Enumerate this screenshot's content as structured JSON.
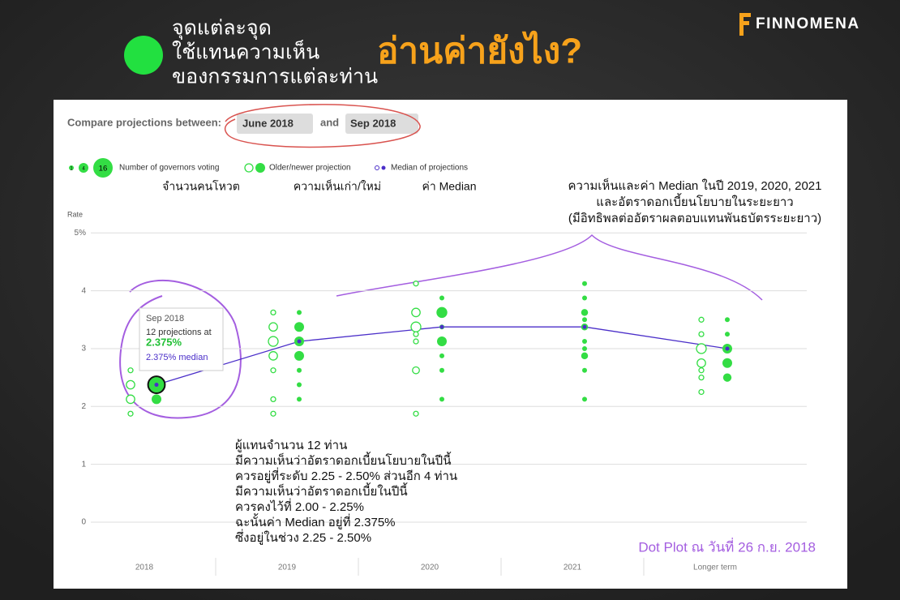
{
  "header": {
    "lines": [
      "จุดแต่ละจุด",
      "ใช้แทนความเห็น",
      "ของกรรมการแต่ละท่าน"
    ],
    "title": "อ่านค่ายังไง?",
    "logo": "FINNOMENA"
  },
  "controls": {
    "label": "Compare projections between:",
    "from": "June 2018",
    "and": "and",
    "to": "Sep 2018"
  },
  "chart_data": {
    "type": "dotplot",
    "legend": {
      "size_label": "Number of governors voting",
      "sizes": [
        1,
        4,
        16
      ],
      "projection_label": "Older/newer projection",
      "median_label": "Median of projections"
    },
    "y_label": "Rate",
    "categories": [
      "2018",
      "2019",
      "2020",
      "2021",
      "Longer term"
    ],
    "ylim": [
      0,
      5.2
    ],
    "yticks": [
      0,
      1,
      2,
      3,
      4,
      {
        "value": 5,
        "label": "5%"
      }
    ],
    "grid": true,
    "series": [
      {
        "fill": false,
        "color": "#33dd44",
        "points": [
          {
            "x": 0,
            "y": 2.625,
            "n": 1
          },
          {
            "x": 0,
            "y": 2.375,
            "n": 3
          },
          {
            "x": 0,
            "y": 2.125,
            "n": 3
          },
          {
            "x": 0,
            "y": 1.875,
            "n": 1
          },
          {
            "x": 1,
            "y": 3.625,
            "n": 1
          },
          {
            "x": 1,
            "y": 3.375,
            "n": 3
          },
          {
            "x": 1,
            "y": 3.125,
            "n": 4
          },
          {
            "x": 1,
            "y": 2.875,
            "n": 3
          },
          {
            "x": 1,
            "y": 2.625,
            "n": 1
          },
          {
            "x": 1,
            "y": 2.125,
            "n": 1
          },
          {
            "x": 1,
            "y": 1.875,
            "n": 1
          },
          {
            "x": 2,
            "y": 4.125,
            "n": 1
          },
          {
            "x": 2,
            "y": 3.625,
            "n": 3
          },
          {
            "x": 2,
            "y": 3.375,
            "n": 4
          },
          {
            "x": 2,
            "y": 3.25,
            "n": 1
          },
          {
            "x": 2,
            "y": 3.125,
            "n": 1
          },
          {
            "x": 2,
            "y": 2.625,
            "n": 2
          },
          {
            "x": 2,
            "y": 1.875,
            "n": 1
          },
          {
            "x": 4,
            "y": 3.5,
            "n": 1
          },
          {
            "x": 4,
            "y": 3.25,
            "n": 1
          },
          {
            "x": 4,
            "y": 3.0,
            "n": 4
          },
          {
            "x": 4,
            "y": 2.75,
            "n": 3
          },
          {
            "x": 4,
            "y": 2.625,
            "n": 1
          },
          {
            "x": 4,
            "y": 2.5,
            "n": 1
          },
          {
            "x": 4,
            "y": 2.25,
            "n": 1
          }
        ]
      },
      {
        "fill": true,
        "color": "#33dd44",
        "points": [
          {
            "x": 0,
            "y": 2.375,
            "n": 12
          },
          {
            "x": 0,
            "y": 2.125,
            "n": 4
          },
          {
            "x": 1,
            "y": 3.625,
            "n": 1
          },
          {
            "x": 1,
            "y": 3.375,
            "n": 4
          },
          {
            "x": 1,
            "y": 3.125,
            "n": 4
          },
          {
            "x": 1,
            "y": 2.875,
            "n": 4
          },
          {
            "x": 1,
            "y": 2.625,
            "n": 1
          },
          {
            "x": 1,
            "y": 2.375,
            "n": 1
          },
          {
            "x": 1,
            "y": 2.125,
            "n": 1
          },
          {
            "x": 2,
            "y": 3.875,
            "n": 1
          },
          {
            "x": 2,
            "y": 3.625,
            "n": 5
          },
          {
            "x": 2,
            "y": 3.375,
            "n": 1
          },
          {
            "x": 2,
            "y": 3.125,
            "n": 4
          },
          {
            "x": 2,
            "y": 2.875,
            "n": 1
          },
          {
            "x": 2,
            "y": 2.625,
            "n": 1
          },
          {
            "x": 2,
            "y": 2.125,
            "n": 1
          },
          {
            "x": 3,
            "y": 4.125,
            "n": 1
          },
          {
            "x": 3,
            "y": 3.875,
            "n": 1
          },
          {
            "x": 3,
            "y": 3.625,
            "n": 2
          },
          {
            "x": 3,
            "y": 3.5,
            "n": 1
          },
          {
            "x": 3,
            "y": 3.375,
            "n": 2
          },
          {
            "x": 3,
            "y": 3.125,
            "n": 1
          },
          {
            "x": 3,
            "y": 3.0,
            "n": 1
          },
          {
            "x": 3,
            "y": 2.875,
            "n": 2
          },
          {
            "x": 3,
            "y": 2.625,
            "n": 1
          },
          {
            "x": 3,
            "y": 2.125,
            "n": 1
          },
          {
            "x": 4,
            "y": 3.5,
            "n": 1
          },
          {
            "x": 4,
            "y": 3.25,
            "n": 1
          },
          {
            "x": 4,
            "y": 3.0,
            "n": 4
          },
          {
            "x": 4,
            "y": 2.75,
            "n": 4
          },
          {
            "x": 4,
            "y": 2.5,
            "n": 3
          }
        ]
      }
    ],
    "median": {
      "color": "#4b2fc9",
      "values": [
        2.375,
        3.125,
        3.375,
        3.375,
        3.0
      ]
    },
    "tooltip": {
      "title": "Sep 2018",
      "text": "12 projections at",
      "value": "2.375%",
      "median": "2.375% median"
    }
  },
  "annotations": {
    "legend_notes": [
      "จำนวนคนโหวต",
      "ความเห็นเก่า/ใหม่",
      "ค่า Median"
    ],
    "right": [
      "ความเห็นและค่า Median ในปี 2019, 2020, 2021",
      "และอัตราดอกเบี้ยนโยบายในระยะยาว",
      "(มีอิทธิพลต่ออัตราผลตอบแทนพันธบัตรระยะยาว)"
    ],
    "bottom": [
      "ผู้แทนจำนวน 12 ท่าน",
      "มีความเห็นว่าอัตราดอกเบี้ยนโยบายในปีนี้",
      "ควรอยู่ที่ระดับ 2.25 - 2.50% ส่วนอีก 4 ท่าน",
      "มีความเห็นว่าอัตราดอกเบี้ยในปีนี้",
      "ควรคงไว้ที่ 2.00 - 2.25%",
      "ฉะนั้นค่า Median อยู่ที่ 2.375%",
      "ซึ่งอยู่ในช่วง 2.25 - 2.50%"
    ],
    "date": "Dot Plot ณ วันที่ 26 ก.ย. 2018"
  }
}
